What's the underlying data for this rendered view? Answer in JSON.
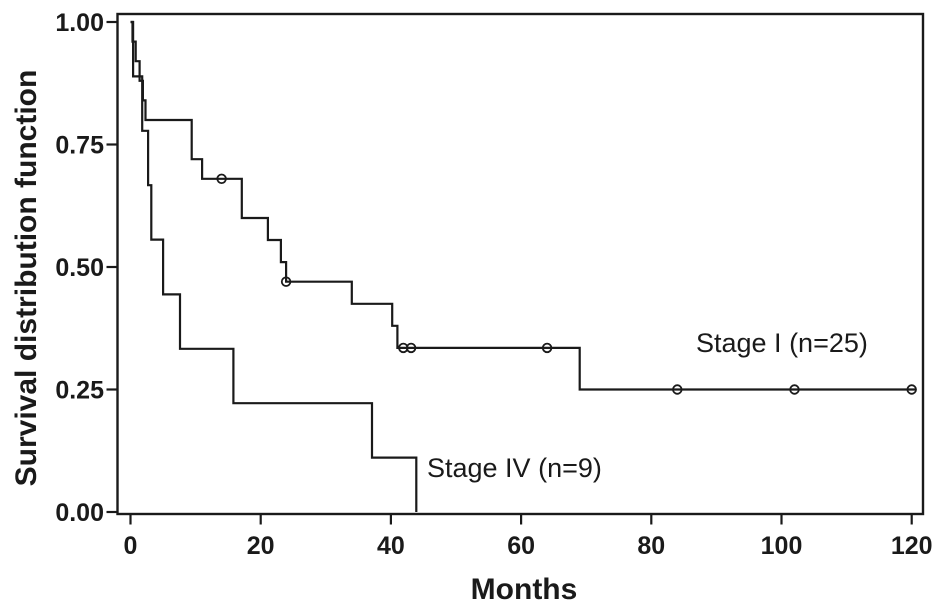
{
  "figure": {
    "background": "#ffffff",
    "line_color": "#1a1a1a",
    "text_color": "#1a1a1a"
  },
  "chart_data": {
    "type": "line",
    "subtype": "kaplan_meier_step_function",
    "title": "",
    "xlabel": "Months",
    "ylabel": "Survival distribution function",
    "xlim": [
      0,
      122
    ],
    "ylim": [
      0,
      1
    ],
    "grid": false,
    "legend_position": "inline-annotations",
    "x_ticks": [
      0,
      20,
      40,
      60,
      80,
      100,
      120
    ],
    "y_ticks": [
      {
        "value": 1.0,
        "label": "1.00"
      },
      {
        "value": 0.75,
        "label": "0.75"
      },
      {
        "value": 0.5,
        "label": "0.50"
      },
      {
        "value": 0.25,
        "label": "0.25"
      },
      {
        "value": 0.0,
        "label": "0.00"
      }
    ],
    "series": [
      {
        "id": "stage-i",
        "name": "Stage I (n=25)",
        "n": 25,
        "points_note": "first point is curve start; each later point [t_months, survival] is a drop at time t to that survival level",
        "points": [
          [
            0,
            1.0
          ],
          [
            0.3,
            0.96
          ],
          [
            0.8,
            0.92
          ],
          [
            1.4,
            0.88
          ],
          [
            1.9,
            0.84
          ],
          [
            2.3,
            0.8
          ],
          [
            9.4,
            0.72
          ],
          [
            11,
            0.68
          ],
          [
            17.1,
            0.6
          ],
          [
            21.1,
            0.555
          ],
          [
            23.1,
            0.51
          ],
          [
            23.9,
            0.47
          ],
          [
            34,
            0.425
          ],
          [
            40.2,
            0.38
          ],
          [
            41,
            0.335
          ],
          [
            69,
            0.25
          ]
        ],
        "end_time": 120.6,
        "censor_marks": [
          [
            14,
            0.68
          ],
          [
            23.9,
            0.47
          ],
          [
            41.9,
            0.335
          ],
          [
            43.1,
            0.335
          ],
          [
            64,
            0.335
          ],
          [
            84,
            0.25
          ],
          [
            102,
            0.25
          ],
          [
            120,
            0.25
          ]
        ]
      },
      {
        "id": "stage-iv",
        "name": "Stage IV (n=9)",
        "n": 9,
        "points": [
          [
            0,
            1.0
          ],
          [
            0.4,
            0.889
          ],
          [
            1.8,
            0.778
          ],
          [
            2.7,
            0.667
          ],
          [
            3.2,
            0.556
          ],
          [
            5,
            0.444
          ],
          [
            7.6,
            0.333
          ],
          [
            15.8,
            0.222
          ],
          [
            37.1,
            0.111
          ],
          [
            43.9,
            0.0
          ]
        ],
        "end_time": 43.9,
        "censor_marks": []
      }
    ]
  }
}
